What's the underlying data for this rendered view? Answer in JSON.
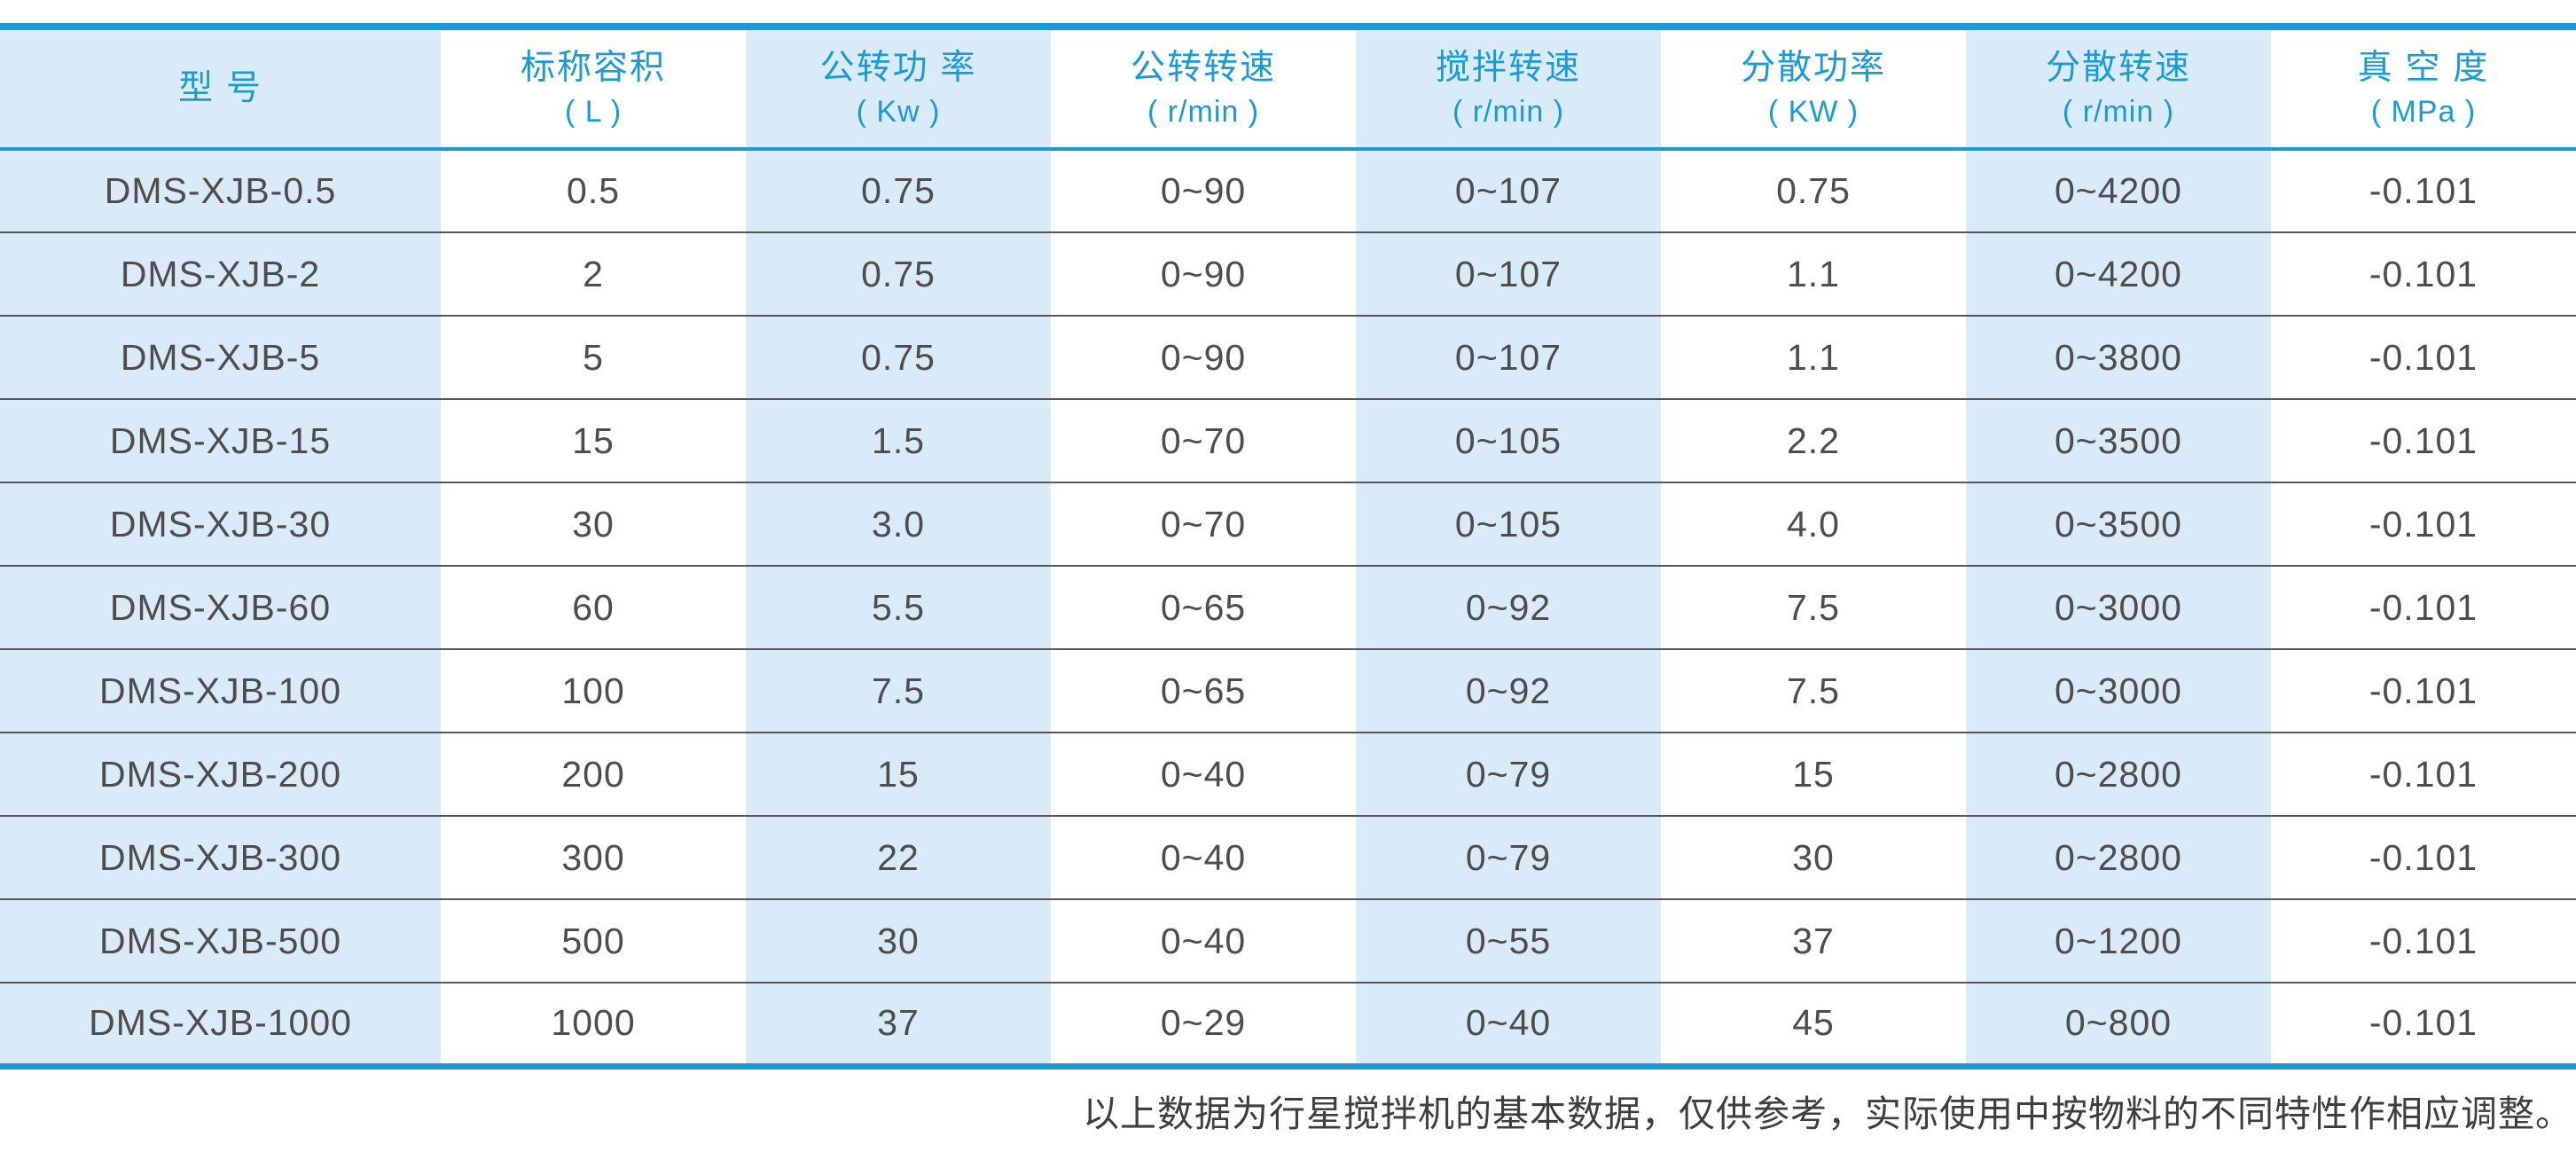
{
  "table": {
    "columns": [
      {
        "label": "型  号",
        "unit": ""
      },
      {
        "label": "标称容积",
        "unit": "( L )"
      },
      {
        "label": "公转功 率",
        "unit": "( Kw )"
      },
      {
        "label": "公转转速",
        "unit": "( r/min )"
      },
      {
        "label": "搅拌转速",
        "unit": "( r/min )"
      },
      {
        "label": "分散功率",
        "unit": "( KW )"
      },
      {
        "label": "分散转速",
        "unit": "( r/min )"
      },
      {
        "label": "真 空 度",
        "unit": "( MPa )"
      }
    ],
    "rows": [
      [
        "DMS-XJB-0.5",
        "0.5",
        "0.75",
        "0~90",
        "0~107",
        "0.75",
        "0~4200",
        "-0.101"
      ],
      [
        "DMS-XJB-2",
        "2",
        "0.75",
        "0~90",
        "0~107",
        "1.1",
        "0~4200",
        "-0.101"
      ],
      [
        "DMS-XJB-5",
        "5",
        "0.75",
        "0~90",
        "0~107",
        "1.1",
        "0~3800",
        "-0.101"
      ],
      [
        "DMS-XJB-15",
        "15",
        "1.5",
        "0~70",
        "0~105",
        "2.2",
        "0~3500",
        "-0.101"
      ],
      [
        "DMS-XJB-30",
        "30",
        "3.0",
        "0~70",
        "0~105",
        "4.0",
        "0~3500",
        "-0.101"
      ],
      [
        "DMS-XJB-60",
        "60",
        "5.5",
        "0~65",
        "0~92",
        "7.5",
        "0~3000",
        "-0.101"
      ],
      [
        "DMS-XJB-100",
        "100",
        "7.5",
        "0~65",
        "0~92",
        "7.5",
        "0~3000",
        "-0.101"
      ],
      [
        "DMS-XJB-200",
        "200",
        "15",
        "0~40",
        "0~79",
        "15",
        "0~2800",
        "-0.101"
      ],
      [
        "DMS-XJB-300",
        "300",
        "22",
        "0~40",
        "0~79",
        "30",
        "0~2800",
        "-0.101"
      ],
      [
        "DMS-XJB-500",
        "500",
        "30",
        "0~40",
        "0~55",
        "37",
        "0~1200",
        "-0.101"
      ],
      [
        "DMS-XJB-1000",
        "1000",
        "37",
        "0~29",
        "0~40",
        "45",
        "0~800",
        "-0.101"
      ]
    ]
  },
  "footnote": "以上数据为行星搅拌机的基本数据，仅供参考，实际使用中按物料的不同特性作相应调整。",
  "colors": {
    "accent_blue": "#1b9ad6",
    "header_text_blue": "#1b9ad8",
    "column_shade_blue": "#d9eaf8",
    "data_text": "#4d4d4d",
    "row_separator": "#55565a"
  }
}
